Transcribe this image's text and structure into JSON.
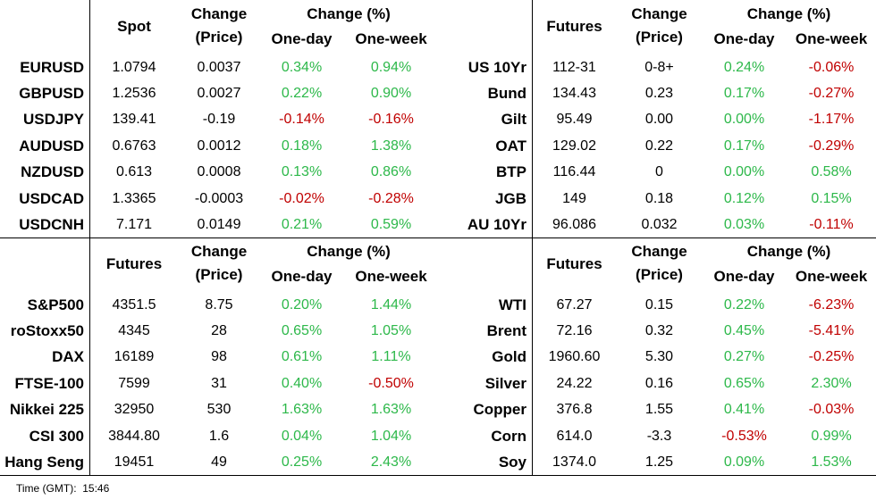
{
  "panels": [
    {
      "first_header": "Spot",
      "change_header": [
        "Change",
        "(Price)"
      ],
      "pct_header": "Change (%)",
      "day_header": "One-day",
      "week_header": "One-week",
      "rows": [
        [
          "EURUSD",
          "1.0794",
          "0.0037",
          "0.34%",
          "0.94%"
        ],
        [
          "GBPUSD",
          "1.2536",
          "0.0027",
          "0.22%",
          "0.90%"
        ],
        [
          "USDJPY",
          "139.41",
          "-0.19",
          "-0.14%",
          "-0.16%"
        ],
        [
          "AUDUSD",
          "0.6763",
          "0.0012",
          "0.18%",
          "1.38%"
        ],
        [
          "NZDUSD",
          "0.613",
          "0.0008",
          "0.13%",
          "0.86%"
        ],
        [
          "USDCAD",
          "1.3365",
          "-0.0003",
          "-0.02%",
          "-0.28%"
        ],
        [
          "USDCNH",
          "7.171",
          "0.0149",
          "0.21%",
          "0.59%"
        ]
      ]
    },
    {
      "first_header": "Futures",
      "change_header": [
        "Change",
        "(Price)"
      ],
      "pct_header": "Change (%)",
      "day_header": "One-day",
      "week_header": "One-week",
      "rows": [
        [
          "US 10Yr",
          "112-31",
          "0-8+",
          "0.24%",
          "-0.06%"
        ],
        [
          "Bund",
          "134.43",
          "0.23",
          "0.17%",
          "-0.27%"
        ],
        [
          "Gilt",
          "95.49",
          "0.00",
          "0.00%",
          "-1.17%"
        ],
        [
          "OAT",
          "129.02",
          "0.22",
          "0.17%",
          "-0.29%"
        ],
        [
          "BTP",
          "116.44",
          "0",
          "0.00%",
          "0.58%"
        ],
        [
          "JGB",
          "149",
          "0.18",
          "0.12%",
          "0.15%"
        ],
        [
          "AU 10Yr",
          "96.086",
          "0.032",
          "0.03%",
          "-0.11%"
        ]
      ]
    },
    {
      "first_header": "Futures",
      "change_header": [
        "Change",
        "(Price)"
      ],
      "pct_header": "Change (%)",
      "day_header": "One-day",
      "week_header": "One-week",
      "rows": [
        [
          "S&P500",
          "4351.5",
          "8.75",
          "0.20%",
          "1.44%"
        ],
        [
          "roStoxx50",
          "4345",
          "28",
          "0.65%",
          "1.05%"
        ],
        [
          "DAX",
          "16189",
          "98",
          "0.61%",
          "1.11%"
        ],
        [
          "FTSE-100",
          "7599",
          "31",
          "0.40%",
          "-0.50%"
        ],
        [
          "Nikkei 225",
          "32950",
          "530",
          "1.63%",
          "1.63%"
        ],
        [
          "CSI 300",
          "3844.80",
          "1.6",
          "0.04%",
          "1.04%"
        ],
        [
          "Hang Seng",
          "19451",
          "49",
          "0.25%",
          "2.43%"
        ]
      ]
    },
    {
      "first_header": "Futures",
      "change_header": [
        "Change",
        "(Price)"
      ],
      "pct_header": "Change (%)",
      "day_header": "One-day",
      "week_header": "One-week",
      "rows": [
        [
          "WTI",
          "67.27",
          "0.15",
          "0.22%",
          "-6.23%"
        ],
        [
          "Brent",
          "72.16",
          "0.32",
          "0.45%",
          "-5.41%"
        ],
        [
          "Gold",
          "1960.60",
          "5.30",
          "0.27%",
          "-0.25%"
        ],
        [
          "Silver",
          "24.22",
          "0.16",
          "0.65%",
          "2.30%"
        ],
        [
          "Copper",
          "376.8",
          "1.55",
          "0.41%",
          "-0.03%"
        ],
        [
          "Corn",
          "614.0",
          "-3.3",
          "-0.53%",
          "0.99%"
        ],
        [
          "Soy",
          "1374.0",
          "1.25",
          "0.09%",
          "1.53%"
        ]
      ]
    }
  ],
  "footer": {
    "label": "Time (GMT):",
    "time": "15:46"
  }
}
